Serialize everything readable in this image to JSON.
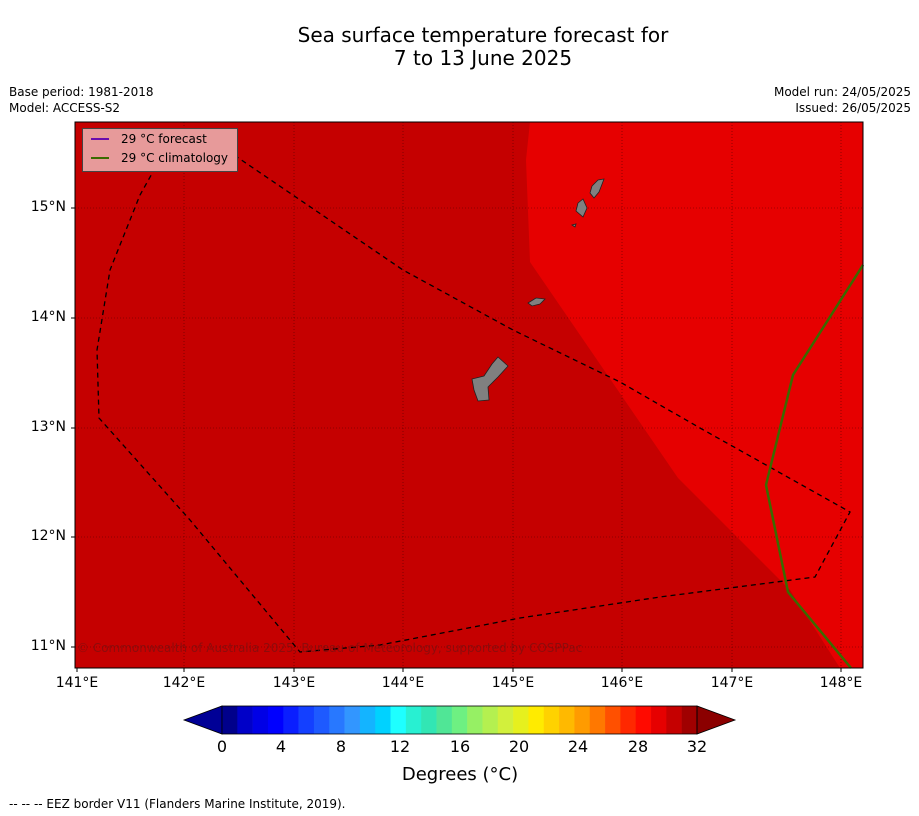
{
  "header": {
    "title_line1": "Sea surface temperature forecast for",
    "title_line2": "7 to 13 June 2025",
    "base_period": "Base period: 1981-2018",
    "model": "Model: ACCESS-S2",
    "model_run": "Model run: 24/05/2025",
    "issued": "Issued: 26/05/2025"
  },
  "map": {
    "lat_labels": [
      "15°N",
      "14°N",
      "13°N",
      "12°N",
      "11°N"
    ],
    "lon_labels": [
      "141°E",
      "142°E",
      "143°E",
      "144°E",
      "145°E",
      "146°E",
      "147°E",
      "148°E"
    ],
    "legend": {
      "forecast_label": "29 °C  forecast",
      "climatology_label": "29 °C  climatology",
      "forecast_color": "#6a0dad",
      "climatology_color": "#3a6b00"
    },
    "copyright": "© Commonwealth of Australia 2025, Bureau of Meteorology, supported by COSPPac",
    "colors": {
      "sea_warm": "#c50000",
      "sea_hot": "#e60000",
      "land": "#808080",
      "eez_border": "#000000"
    }
  },
  "colorbar": {
    "tick_labels": [
      "0",
      "4",
      "8",
      "12",
      "16",
      "20",
      "24",
      "28",
      "32"
    ],
    "units_label": "Degrees (°C)",
    "colors": [
      "#00008b",
      "#0000c8",
      "#0000e6",
      "#0000ff",
      "#0a1eff",
      "#1440ff",
      "#1e5aff",
      "#2878ff",
      "#3296ff",
      "#14b4ff",
      "#00d2ff",
      "#1effff",
      "#28f0d2",
      "#32e6b4",
      "#50e696",
      "#6ef082",
      "#96f064",
      "#b4f050",
      "#d2f03c",
      "#e6f01e",
      "#ffeb00",
      "#ffd200",
      "#ffb900",
      "#ff9b00",
      "#ff7800",
      "#ff5000",
      "#ff2800",
      "#ff0a00",
      "#e60000",
      "#c50000",
      "#a00000"
    ],
    "under_color": "#000096",
    "over_color": "#8b0000"
  },
  "footer": {
    "eez_note": "--  --  -- EEZ border V11 (Flanders Marine Institute, 2019)."
  }
}
